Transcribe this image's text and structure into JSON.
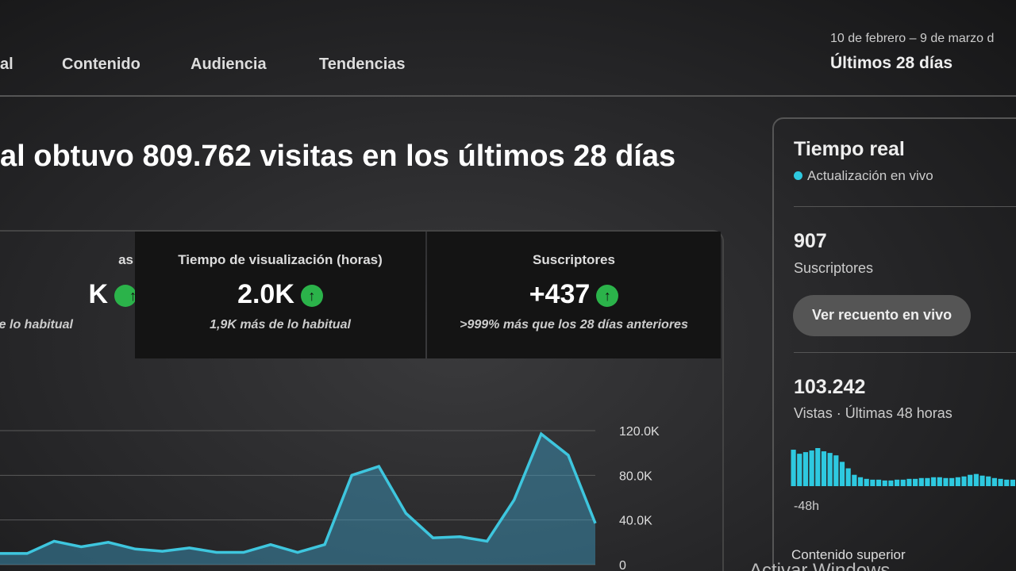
{
  "tabs": [
    "al",
    "Contenido",
    "Audiencia",
    "Tendencias"
  ],
  "date_range": {
    "dates": "10 de febrero – 9 de marzo d",
    "period": "Últimos 28 días"
  },
  "headline": "al obtuvo 809.762 visitas en los últimos 28 días",
  "metrics": [
    {
      "label": "as",
      "value": "K",
      "note": "e lo habitual"
    },
    {
      "label": "Tiempo de visualización (horas)",
      "value": "2.0K",
      "note": "1,9K más de lo habitual"
    },
    {
      "label": "Suscriptores",
      "value": "+437",
      "note": ">999% más que los 28 días anteriores"
    }
  ],
  "chart_data": {
    "type": "line",
    "color": "#3ec6de",
    "values": [
      10000,
      10000,
      21000,
      16000,
      20000,
      14000,
      12000,
      15000,
      11000,
      11000,
      18000,
      11000,
      18000,
      80000,
      88000,
      46000,
      24000,
      25000,
      21000,
      58000,
      117000,
      98000,
      37000
    ],
    "ylim": [
      0,
      120000
    ],
    "yticks": [
      0,
      {
        "value": 40000,
        "label": "40.0K"
      },
      {
        "value": 80000,
        "label": "80.0K"
      },
      {
        "value": 120000,
        "label": "120.0K"
      }
    ],
    "grid": true
  },
  "realtime": {
    "title": "Tiempo real",
    "live": "Actualización en vivo",
    "subscribers": "907",
    "subscribers_label": "Suscriptores",
    "button": "Ver recuento en vivo",
    "views": "103.242",
    "views_label": "Vistas · Últimas 48 horas",
    "chart": {
      "type": "bar",
      "color": "#2ec9e0",
      "values": [
        45,
        40,
        42,
        44,
        47,
        43,
        41,
        38,
        30,
        22,
        14,
        11,
        9,
        8,
        8,
        7,
        7,
        8,
        8,
        9,
        9,
        10,
        10,
        11,
        11,
        10,
        10,
        11,
        12,
        14,
        15,
        13,
        12,
        10,
        9,
        8,
        8
      ],
      "x_label": "-48h"
    },
    "top_content": "Contenido superior"
  },
  "watermark": "Activar Windows"
}
